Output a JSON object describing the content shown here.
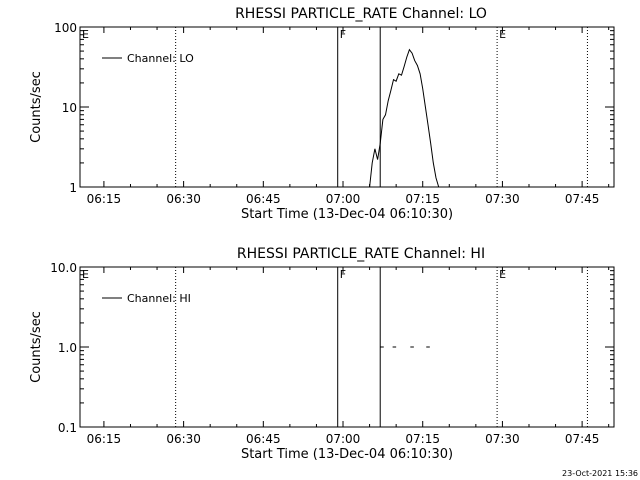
{
  "footer_timestamp": "23-Oct-2021 15:36",
  "chart_data": [
    {
      "type": "line",
      "title": "RHESSI PARTICLE_RATE Channel: LO",
      "xlabel": "Start Time (13-Dec-04 06:10:30)",
      "ylabel": "Counts/sec",
      "yscale": "log",
      "ylim": [
        1,
        100
      ],
      "xlim": [
        "06:10:30",
        "07:51:00"
      ],
      "x_ticks": [
        "06:15",
        "06:30",
        "06:45",
        "07:00",
        "07:15",
        "07:30",
        "07:45"
      ],
      "y_ticks": [
        "1",
        "10",
        "100"
      ],
      "legend": {
        "position": "top-left",
        "entries": [
          "Channel: LO"
        ]
      },
      "markers": [
        {
          "label": "E",
          "time": "06:10:30",
          "style": "dotted"
        },
        {
          "label": "",
          "time": "06:28:30",
          "style": "dotted"
        },
        {
          "label": "F",
          "time": "06:59:00",
          "style": "solid"
        },
        {
          "label": "",
          "time": "07:07:00",
          "style": "solid"
        },
        {
          "label": "E",
          "time": "07:29:00",
          "style": "dotted"
        },
        {
          "label": "",
          "time": "07:46:00",
          "style": "dotted"
        }
      ],
      "series": [
        {
          "name": "Channel: LO",
          "x": [
            "07:05:00",
            "07:05:30",
            "07:06:00",
            "07:06:30",
            "07:07:00",
            "07:07:30",
            "07:08:00",
            "07:08:30",
            "07:09:00",
            "07:09:30",
            "07:10:00",
            "07:10:30",
            "07:11:00",
            "07:11:30",
            "07:12:00",
            "07:12:30",
            "07:13:00",
            "07:13:30",
            "07:14:00",
            "07:14:30",
            "07:15:00",
            "07:15:30",
            "07:16:00",
            "07:16:30",
            "07:17:00",
            "07:17:30",
            "07:18:00"
          ],
          "y": [
            1.0,
            2.0,
            3.0,
            2.2,
            3.5,
            7,
            8,
            12,
            16,
            22,
            21,
            26,
            25,
            32,
            42,
            52,
            47,
            38,
            33,
            26,
            17,
            10,
            6,
            3.5,
            2,
            1.3,
            1.0
          ]
        }
      ]
    },
    {
      "type": "line",
      "title": "RHESSI PARTICLE_RATE Channel: HI",
      "xlabel": "Start Time (13-Dec-04 06:10:30)",
      "ylabel": "Counts/sec",
      "yscale": "log",
      "ylim": [
        0.1,
        10
      ],
      "xlim": [
        "06:10:30",
        "07:51:00"
      ],
      "x_ticks": [
        "06:15",
        "06:30",
        "06:45",
        "07:00",
        "07:15",
        "07:30",
        "07:45"
      ],
      "y_ticks": [
        "0.1",
        "1.0",
        "10.0"
      ],
      "legend": {
        "position": "top-left",
        "entries": [
          "Channel: HI"
        ]
      },
      "markers": [
        {
          "label": "E",
          "time": "06:10:30",
          "style": "dotted"
        },
        {
          "label": "",
          "time": "06:28:30",
          "style": "dotted"
        },
        {
          "label": "F",
          "time": "06:59:00",
          "style": "solid"
        },
        {
          "label": "",
          "time": "07:07:00",
          "style": "solid"
        },
        {
          "label": "E",
          "time": "07:29:00",
          "style": "dotted"
        },
        {
          "label": "",
          "time": "07:46:00",
          "style": "dotted"
        }
      ],
      "series": [
        {
          "name": "Channel: HI",
          "segments": [
            {
              "x": [
                "07:07:00",
                "07:07:40"
              ],
              "y": [
                1.0,
                1.0
              ]
            },
            {
              "x": [
                "07:09:20",
                "07:10:00"
              ],
              "y": [
                1.0,
                1.0
              ]
            },
            {
              "x": [
                "07:12:40",
                "07:13:20"
              ],
              "y": [
                1.0,
                1.0
              ]
            },
            {
              "x": [
                "07:15:40",
                "07:16:20"
              ],
              "y": [
                1.0,
                1.0
              ]
            }
          ]
        }
      ]
    }
  ]
}
